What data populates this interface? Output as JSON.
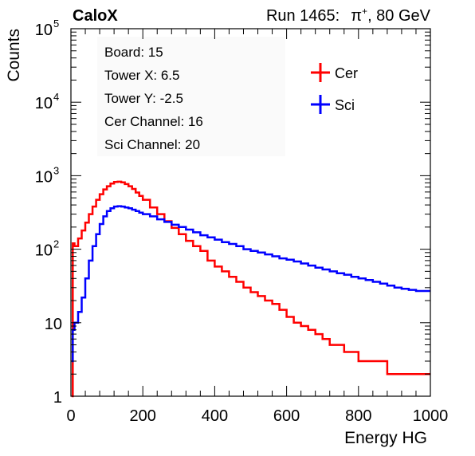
{
  "header": {
    "experiment": "CaloX",
    "run_text": "Run 1465:",
    "beam_particle": "π",
    "beam_charge": "+",
    "beam_energy": ", 80 GeV"
  },
  "info_box": {
    "lines": [
      "Board: 15",
      "Tower X: 6.5",
      "Tower Y: -2.5",
      "Cer Channel: 16",
      "Sci Channel: 20"
    ]
  },
  "legend": {
    "placement": "top-right",
    "entries": [
      {
        "label": "Cer",
        "color": "#ff0000"
      },
      {
        "label": "Sci",
        "color": "#0000ff"
      }
    ]
  },
  "chart_data": {
    "type": "line",
    "title": "",
    "xlabel": "Energy HG",
    "ylabel": "Counts",
    "xlim": [
      0,
      1000
    ],
    "ylim": [
      1,
      100000
    ],
    "y_scale": "log",
    "grid": false,
    "histogram_step": true,
    "x_ticks": [
      0,
      200,
      400,
      600,
      800,
      1000
    ],
    "y_ticks": [
      {
        "value": 1,
        "base": "1",
        "exp": ""
      },
      {
        "value": 10,
        "base": "10",
        "exp": ""
      },
      {
        "value": 100,
        "base": "10",
        "exp": "2"
      },
      {
        "value": 1000,
        "base": "10",
        "exp": "3"
      },
      {
        "value": 10000,
        "base": "10",
        "exp": "4"
      },
      {
        "value": 100000,
        "base": "10",
        "exp": "5"
      }
    ],
    "series": [
      {
        "name": "Cer",
        "color": "#ff0000",
        "x": [
          2,
          5,
          10,
          20,
          30,
          40,
          50,
          60,
          70,
          80,
          90,
          100,
          110,
          120,
          130,
          140,
          150,
          160,
          170,
          180,
          190,
          200,
          220,
          240,
          260,
          280,
          300,
          320,
          340,
          360,
          380,
          400,
          420,
          440,
          460,
          480,
          500,
          520,
          540,
          560,
          580,
          600,
          620,
          640,
          660,
          680,
          700,
          720,
          740,
          760,
          780,
          800,
          820,
          840,
          860,
          880,
          900,
          920,
          940,
          960,
          980,
          1000
        ],
        "y": [
          1,
          120,
          110,
          140,
          180,
          230,
          300,
          380,
          470,
          560,
          650,
          720,
          780,
          820,
          830,
          810,
          770,
          720,
          660,
          590,
          530,
          470,
          370,
          300,
          240,
          195,
          160,
          130,
          110,
          95,
          70,
          58,
          50,
          42,
          36,
          30,
          26,
          23,
          20,
          18,
          15,
          12,
          10,
          9,
          8,
          7,
          6,
          5,
          5,
          4,
          4,
          3,
          3,
          3,
          3,
          2,
          2,
          2,
          2,
          2,
          2,
          2
        ]
      },
      {
        "name": "Sci",
        "color": "#0000ff",
        "x": [
          2,
          5,
          10,
          20,
          30,
          40,
          50,
          60,
          70,
          80,
          90,
          100,
          110,
          120,
          130,
          140,
          150,
          160,
          170,
          180,
          190,
          200,
          220,
          240,
          260,
          280,
          300,
          320,
          340,
          360,
          380,
          400,
          420,
          440,
          460,
          480,
          500,
          520,
          540,
          560,
          580,
          600,
          620,
          640,
          660,
          680,
          700,
          720,
          740,
          760,
          780,
          800,
          820,
          840,
          860,
          880,
          900,
          920,
          940,
          960,
          980,
          1000
        ],
        "y": [
          3,
          8,
          10,
          14,
          22,
          40,
          70,
          110,
          160,
          220,
          280,
          330,
          360,
          380,
          385,
          380,
          370,
          360,
          345,
          330,
          315,
          300,
          280,
          255,
          235,
          215,
          200,
          185,
          170,
          155,
          145,
          135,
          125,
          118,
          110,
          100,
          95,
          90,
          85,
          80,
          75,
          72,
          68,
          64,
          60,
          56,
          53,
          50,
          47,
          45,
          42,
          40,
          38,
          36,
          34,
          32,
          30,
          29,
          28,
          27,
          27,
          27
        ]
      }
    ]
  }
}
